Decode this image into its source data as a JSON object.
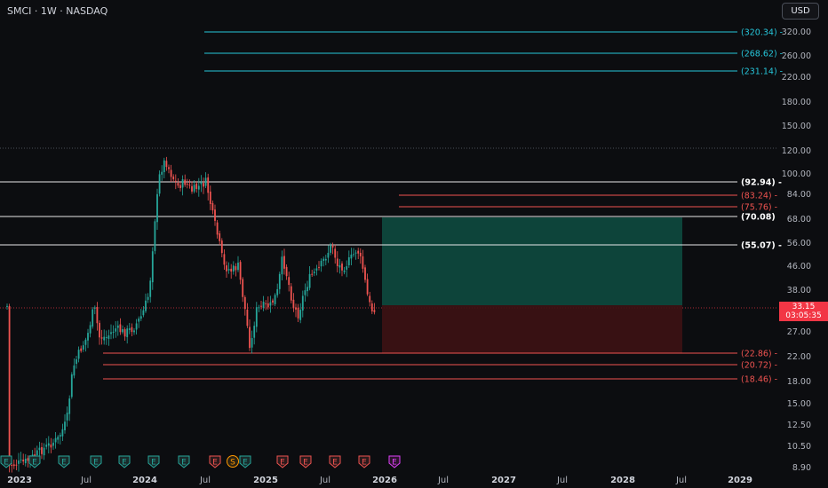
{
  "header": {
    "title": "SMCI · 1W · NASDAQ",
    "currency": "USD"
  },
  "current_price": {
    "price": "33.15",
    "countdown": "03:05:35"
  },
  "price_axis": [
    "320.00",
    "260.00",
    "220.00",
    "180.00",
    "150.00",
    "120.00",
    "100.00",
    "84.00",
    "68.00",
    "56.00",
    "46.00",
    "38.00",
    "27.00",
    "22.00",
    "18.00",
    "15.00",
    "12.50",
    "10.50",
    "8.90"
  ],
  "time_axis": [
    "2023",
    "Jul",
    "2024",
    "Jul",
    "2025",
    "Jul",
    "2026",
    "Jul",
    "2027",
    "Jul",
    "2028",
    "Jul",
    "2029"
  ],
  "level_labels": [
    {
      "text": "(320.34) -",
      "color": "#26c6da"
    },
    {
      "text": "(268.62) -",
      "color": "#26c6da"
    },
    {
      "text": "(231.14) -",
      "color": "#26c6da"
    },
    {
      "text": "(92.94) -",
      "color": "#ffffff"
    },
    {
      "text": "(83.24) -",
      "color": "#ef5350"
    },
    {
      "text": "(75.76) -",
      "color": "#ef5350"
    },
    {
      "text": "(70.08)",
      "color": "#ffffff"
    },
    {
      "text": "(55.07) -",
      "color": "#ffffff"
    },
    {
      "text": "(22.86) -",
      "color": "#ef5350"
    },
    {
      "text": "(20.72) -",
      "color": "#ef5350"
    },
    {
      "text": "(18.46) -",
      "color": "#ef5350"
    }
  ],
  "event_markers": [
    "E",
    "E",
    "E",
    "E",
    "E",
    "E",
    "E",
    "E",
    "S",
    "E",
    "E",
    "E",
    "E",
    "E",
    "E"
  ],
  "colors": {
    "up": "#26a69a",
    "down": "#ef5350",
    "background": "#0c0d10",
    "cyan": "#26c6da",
    "profit_zone": "#0d4a3f",
    "loss_zone": "#3d1214"
  }
}
